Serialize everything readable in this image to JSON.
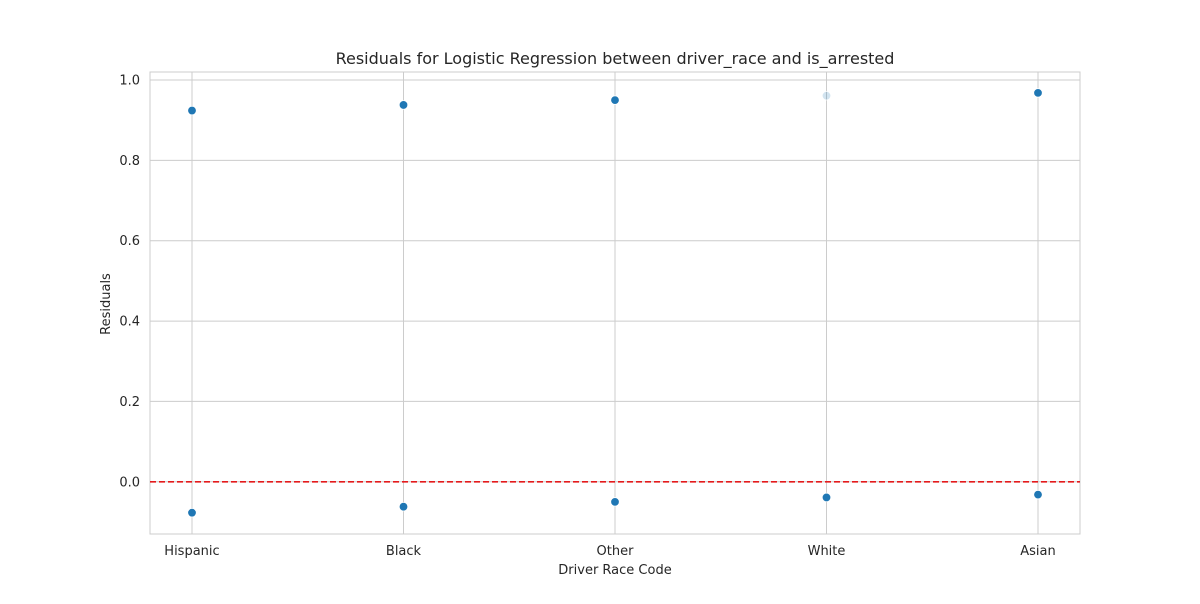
{
  "chart_data": {
    "type": "scatter",
    "title": "Residuals for Logistic Regression between driver_race and is_arrested",
    "xlabel": "Driver Race Code",
    "ylabel": "Residuals",
    "categories": [
      "Hispanic",
      "Black",
      "Other",
      "White",
      "Asian"
    ],
    "ylim": [
      -0.13,
      1.02
    ],
    "yticks": [
      0.0,
      0.2,
      0.4,
      0.6,
      0.8,
      1.0
    ],
    "ytick_labels": [
      "0.0",
      "0.2",
      "0.4",
      "0.6",
      "0.8",
      "1.0"
    ],
    "grid": true,
    "points": [
      {
        "category": "Hispanic",
        "y": 0.924,
        "opacity": 1.0
      },
      {
        "category": "Hispanic",
        "y": -0.077,
        "opacity": 1.0
      },
      {
        "category": "Black",
        "y": 0.938,
        "opacity": 1.0
      },
      {
        "category": "Black",
        "y": -0.062,
        "opacity": 1.0
      },
      {
        "category": "Other",
        "y": 0.95,
        "opacity": 1.0
      },
      {
        "category": "Other",
        "y": -0.05,
        "opacity": 1.0
      },
      {
        "category": "White",
        "y": 0.961,
        "opacity": 0.2
      },
      {
        "category": "White",
        "y": -0.039,
        "opacity": 1.0
      },
      {
        "category": "Asian",
        "y": 0.968,
        "opacity": 1.0
      },
      {
        "category": "Asian",
        "y": -0.032,
        "opacity": 1.0
      }
    ],
    "reference_line": {
      "y": 0.0,
      "color": "#e41a1c",
      "style": "dashed"
    },
    "colors": {
      "point": "#1f77b4",
      "grid": "#cccccc",
      "axes_edge": "#cccccc"
    }
  }
}
